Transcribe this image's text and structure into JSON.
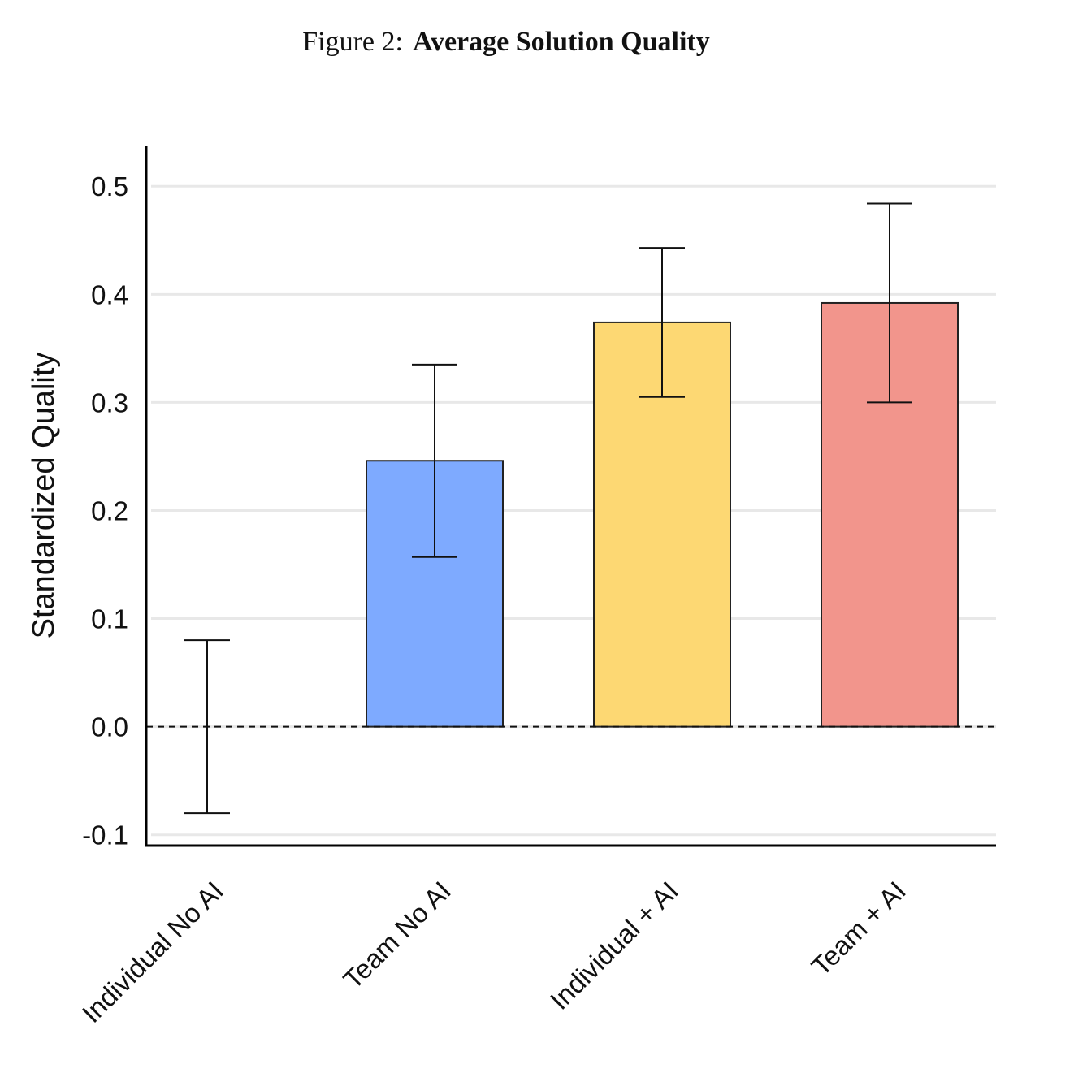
{
  "chart_data": {
    "type": "bar",
    "figure_label": "Figure 2:",
    "title": "Average Solution Quality",
    "y_label": "Standardized Quality",
    "categories": [
      "Individual No AI",
      "Team No AI",
      "Individual + AI",
      "Team + AI"
    ],
    "values": [
      0,
      0.246,
      0.374,
      0.392
    ],
    "errors": [
      0.08,
      0.089,
      0.069,
      0.092
    ],
    "colors": [
      null,
      "#7eaaff",
      "#fdd873",
      "#f2958c"
    ],
    "ylim": [
      -0.11,
      0.537
    ],
    "yticks": [
      -0.1,
      {
        "value": 0,
        "label": "0.0"
      },
      0.1,
      0.2,
      0.3,
      0.4,
      0.5
    ],
    "grid": true,
    "zero_line": "dashed"
  }
}
